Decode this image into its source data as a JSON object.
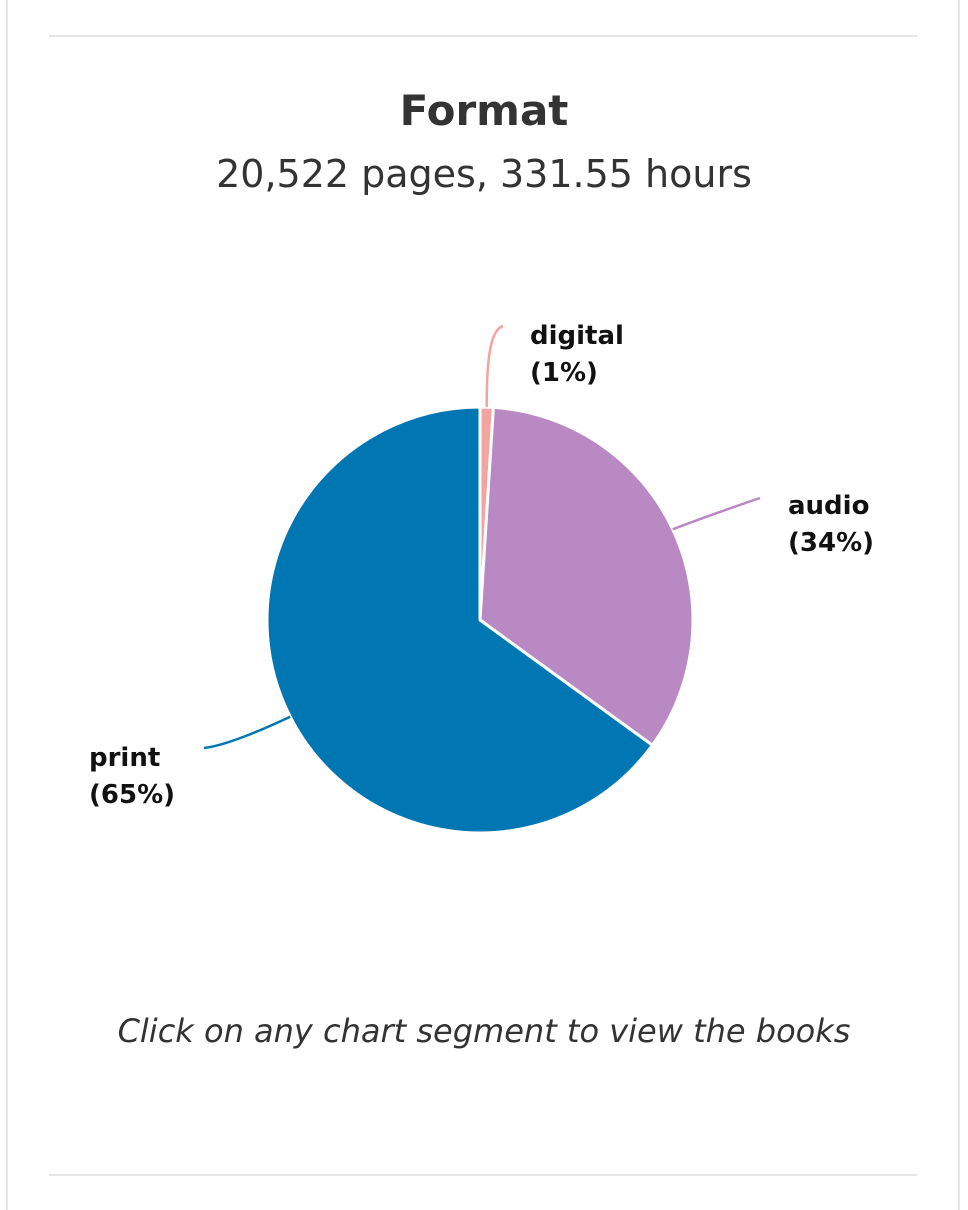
{
  "header": {
    "title": "Format",
    "subtitle": "20,522 pages, 331.55 hours"
  },
  "footer": {
    "hint": "Click on any chart segment to view the books"
  },
  "colors": {
    "digital": "#f2a5a0",
    "audio": "#b889c3",
    "print": "#0077b3",
    "slice_border": "#ffffff"
  },
  "chart_data": {
    "type": "pie",
    "title": "Format",
    "subtitle": "20,522 pages, 331.55 hours",
    "slices": [
      {
        "label": "digital",
        "percent_text": "(1%)",
        "value": 1,
        "color": "#f2a5a0"
      },
      {
        "label": "audio",
        "percent_text": "(34%)",
        "value": 34,
        "color": "#b889c3"
      },
      {
        "label": "print",
        "percent_text": "(65%)",
        "value": 65,
        "color": "#0077b3"
      }
    ]
  }
}
